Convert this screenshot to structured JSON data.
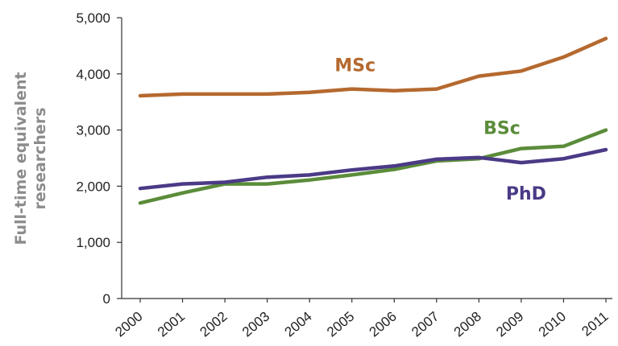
{
  "chart_data": {
    "type": "line",
    "title": "",
    "xlabel": "",
    "ylabel": [
      "Full-time equivalent",
      "researchers"
    ],
    "ylim": [
      0,
      5000
    ],
    "yticks": [
      "0",
      "1,000",
      "2,000",
      "3,000",
      "4,000",
      "5,000"
    ],
    "ytick_values": [
      0,
      1000,
      2000,
      3000,
      4000,
      5000
    ],
    "grid": false,
    "legend": "none",
    "categories": [
      "2000",
      "2001",
      "2002",
      "2003",
      "2004",
      "2005",
      "2006",
      "2007",
      "2008",
      "2009",
      "2010",
      "2011"
    ],
    "series": [
      {
        "name": "MSc",
        "color": "#b5692f",
        "values": [
          3610,
          3640,
          3640,
          3640,
          3670,
          3730,
          3700,
          3730,
          3960,
          4050,
          4300,
          4630
        ]
      },
      {
        "name": "BSc",
        "color": "#5b8c3a",
        "values": [
          1700,
          1880,
          2040,
          2040,
          2110,
          2200,
          2300,
          2450,
          2490,
          2670,
          2710,
          3000
        ]
      },
      {
        "name": "PhD",
        "color": "#4b3a86",
        "values": [
          1960,
          2040,
          2070,
          2160,
          2200,
          2290,
          2360,
          2480,
          2510,
          2420,
          2490,
          2650
        ]
      }
    ]
  }
}
